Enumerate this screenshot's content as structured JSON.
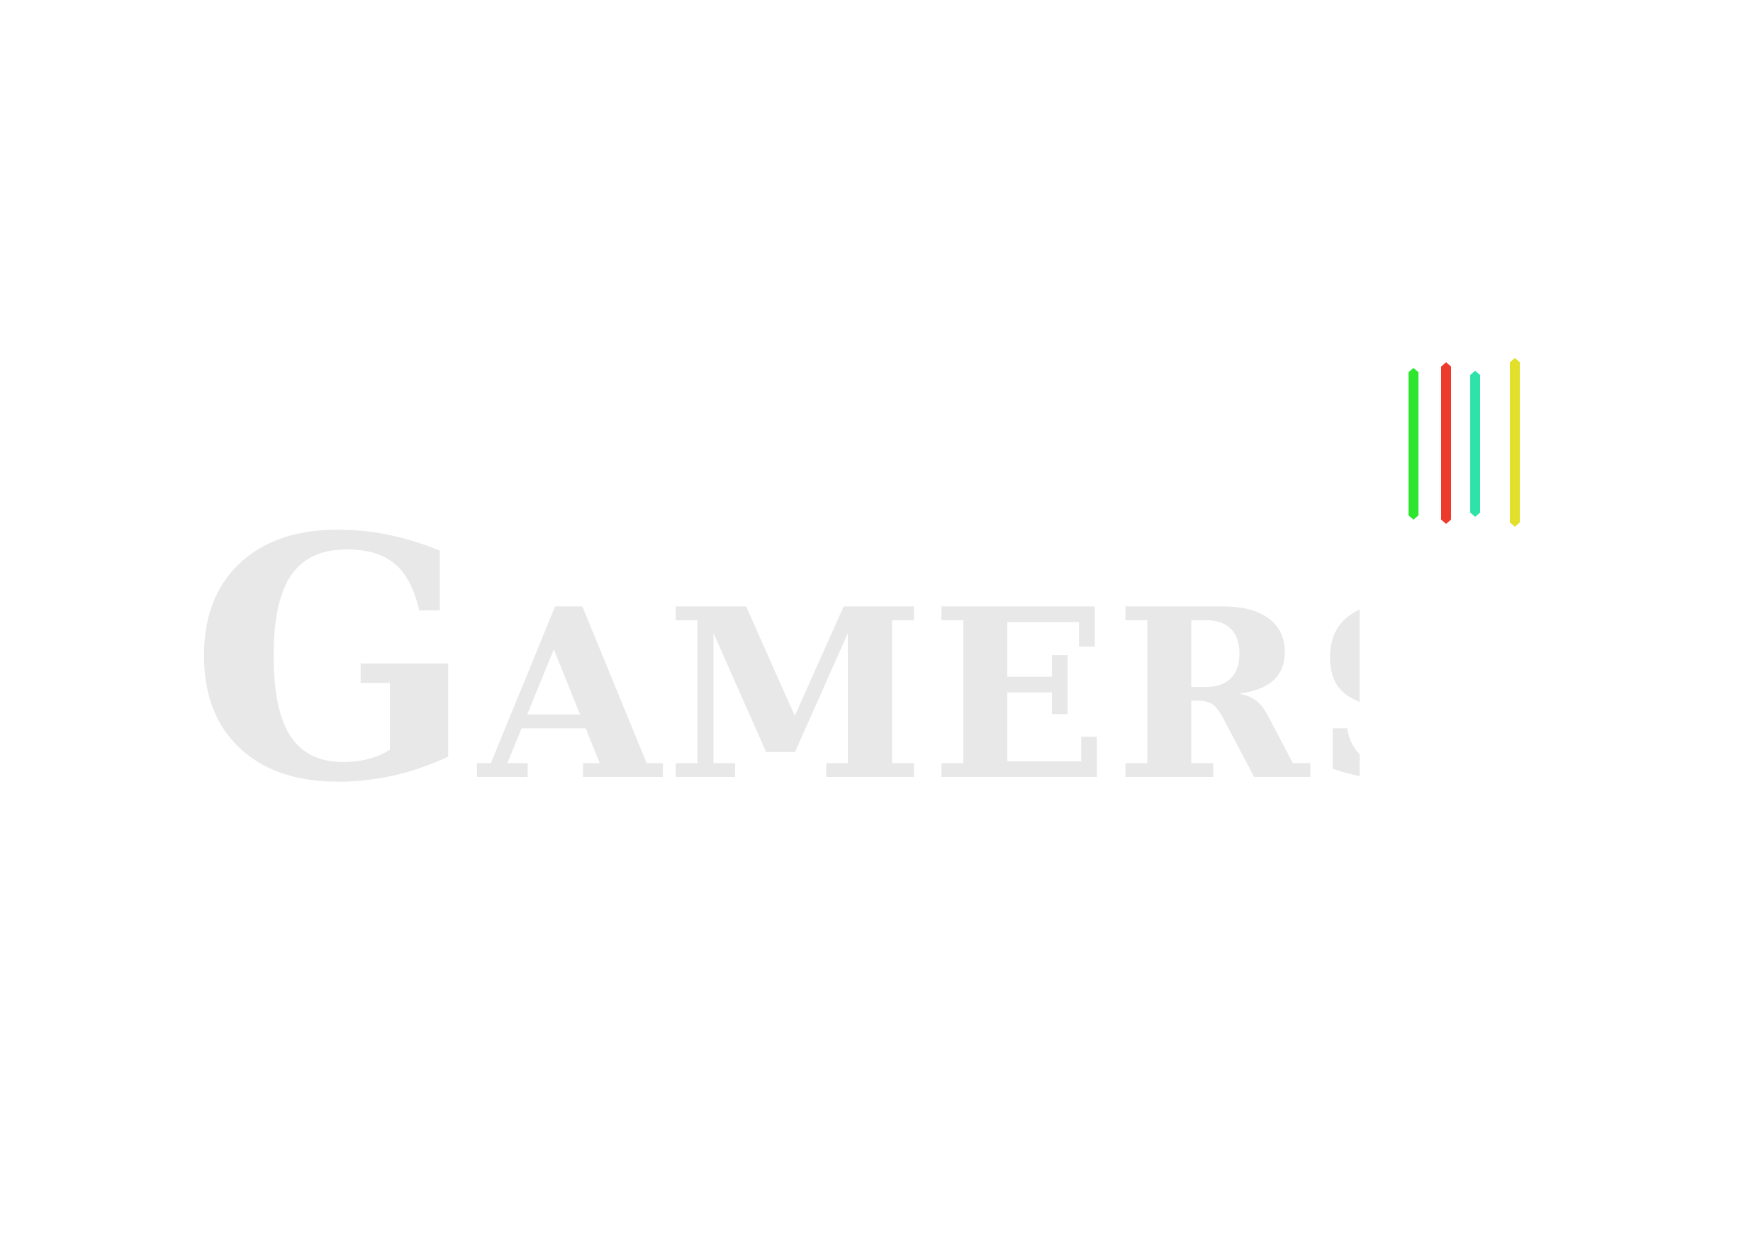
{
  "logo": {
    "initial": "G",
    "rest": "AMERS",
    "text_color": "#e8e8e8"
  },
  "bars": [
    {
      "name": "green-bar",
      "color": "#2ee62e"
    },
    {
      "name": "red-bar",
      "color": "#ec3b2c"
    },
    {
      "name": "teal-bar",
      "color": "#2ee3a9"
    },
    {
      "name": "yellow-bar",
      "color": "#e3e02c"
    }
  ]
}
